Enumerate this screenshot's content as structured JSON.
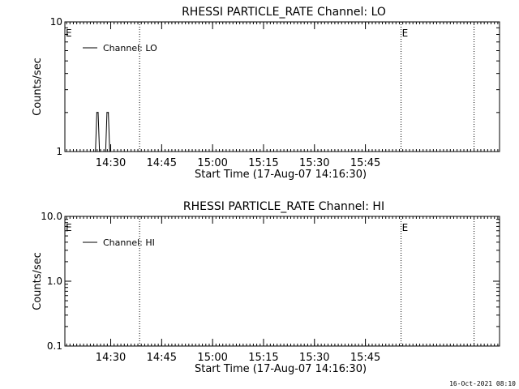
{
  "footer": {
    "timestamp": "16-Oct-2021 08:10"
  },
  "chart_data": [
    {
      "type": "line",
      "title": "RHESSI PARTICLE_RATE Channel: LO",
      "xlabel": "Start Time (17-Aug-07 14:16:30)",
      "ylabel": "Counts/sec",
      "x_unit": "minutes after 14:16:30",
      "xlim": [
        0,
        128
      ],
      "ylim": [
        1,
        10
      ],
      "yscale": "log",
      "x_tick_labels": [
        "14:30",
        "14:45",
        "15:00",
        "15:15",
        "15:30",
        "15:45"
      ],
      "x_tick_values": [
        13.5,
        28.5,
        43.5,
        58.5,
        73.5,
        88.5
      ],
      "y_tick_labels": [
        "1",
        "10"
      ],
      "y_tick_values": [
        1,
        10
      ],
      "legend": {
        "label": "Channel: LO",
        "placement": "top-left"
      },
      "series": [
        {
          "name": "Channel: LO",
          "x": [
            9.0,
            9.4,
            9.8,
            10.2,
            12.0,
            12.4,
            12.8,
            13.2
          ],
          "y": [
            1,
            2,
            2,
            1,
            1,
            2,
            2,
            1
          ]
        }
      ],
      "event_lines": [
        {
          "x": 22.0,
          "marker": ""
        },
        {
          "x": 99.0,
          "marker": "E"
        },
        {
          "x": 120.5,
          "marker": ""
        }
      ],
      "start_marker": "E"
    },
    {
      "type": "line",
      "title": "RHESSI PARTICLE_RATE Channel: HI",
      "xlabel": "Start Time (17-Aug-07 14:16:30)",
      "ylabel": "Counts/sec",
      "x_unit": "minutes after 14:16:30",
      "xlim": [
        0,
        128
      ],
      "ylim": [
        0.1,
        10
      ],
      "yscale": "log",
      "x_tick_labels": [
        "14:30",
        "14:45",
        "15:00",
        "15:15",
        "15:30",
        "15:45"
      ],
      "x_tick_values": [
        13.5,
        28.5,
        43.5,
        58.5,
        73.5,
        88.5
      ],
      "y_tick_labels": [
        "0.1",
        "1.0",
        "10.0"
      ],
      "y_tick_values": [
        0.1,
        1,
        10
      ],
      "legend": {
        "label": "Channel: HI",
        "placement": "top-left"
      },
      "series": [
        {
          "name": "Channel: HI",
          "x": [],
          "y": []
        }
      ],
      "event_lines": [
        {
          "x": 22.0,
          "marker": ""
        },
        {
          "x": 99.0,
          "marker": "E"
        },
        {
          "x": 120.5,
          "marker": ""
        }
      ],
      "start_marker": "E"
    }
  ]
}
